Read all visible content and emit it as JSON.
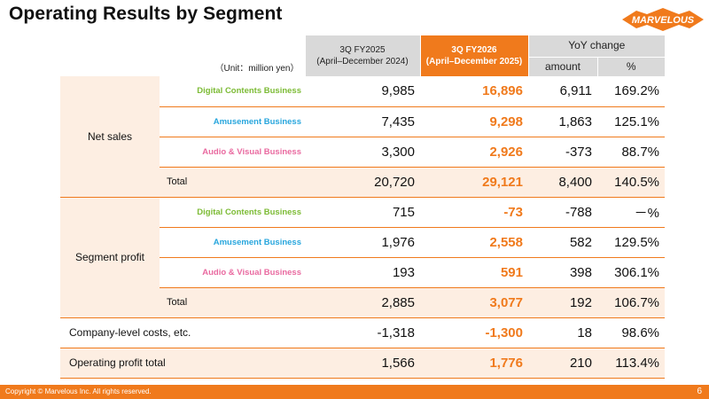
{
  "title": "Operating Results by Segment",
  "logo": {
    "text": "MARVELOUS",
    "colors": {
      "fill": "#f07a1c",
      "stroke": "#ffffff"
    }
  },
  "colors": {
    "accent": "#f07a1c",
    "light": "#fdeee2",
    "header_gray": "#d9d9d9",
    "digital": "#7cbb35",
    "amusement": "#28a6dd",
    "audio_visual": "#e96aa0"
  },
  "header": {
    "unit": "（Unit：million yen）",
    "prev_period": "3Q FY2025",
    "prev_range": "(April–December 2024)",
    "cur_period": "3Q FY2026",
    "cur_range": "(April–December 2025)",
    "yoy": "YoY change",
    "amount": "amount",
    "percent": "%"
  },
  "net_sales": {
    "label": "Net sales",
    "rows": [
      {
        "segment": "Digital Contents Business",
        "prev": "9,985",
        "cur": "16,896",
        "amount": "6,911",
        "pct": "169.2%"
      },
      {
        "segment": "Amusement Business",
        "prev": "7,435",
        "cur": "9,298",
        "amount": "1,863",
        "pct": "125.1%"
      },
      {
        "segment": "Audio & Visual Business",
        "prev": "3,300",
        "cur": "2,926",
        "amount": "-373",
        "pct": "88.7%"
      }
    ],
    "total": {
      "label": "Total",
      "prev": "20,720",
      "cur": "29,121",
      "amount": "8,400",
      "pct": "140.5%"
    }
  },
  "segment_profit": {
    "label": "Segment profit",
    "rows": [
      {
        "segment": "Digital Contents Business",
        "prev": "715",
        "cur": "-73",
        "amount": "-788",
        "pct": "－%"
      },
      {
        "segment": "Amusement Business",
        "prev": "1,976",
        "cur": "2,558",
        "amount": "582",
        "pct": "129.5%"
      },
      {
        "segment": "Audio & Visual Business",
        "prev": "193",
        "cur": "591",
        "amount": "398",
        "pct": "306.1%"
      }
    ],
    "total": {
      "label": "Total",
      "prev": "2,885",
      "cur": "3,077",
      "amount": "192",
      "pct": "106.7%"
    }
  },
  "company_costs": {
    "label": "Company-level costs, etc.",
    "prev": "-1,318",
    "cur": "-1,300",
    "amount": "18",
    "pct": "98.6%"
  },
  "operating_profit": {
    "label": "Operating profit total",
    "prev": "1,566",
    "cur": "1,776",
    "amount": "210",
    "pct": "113.4%"
  },
  "footer": {
    "copyright": "Copyright © Marvelous Inc. All rights reserved.",
    "page": "6"
  }
}
